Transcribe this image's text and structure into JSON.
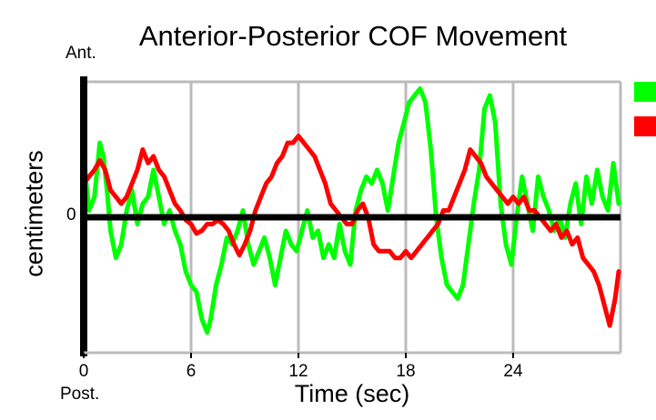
{
  "chart_data": {
    "type": "line",
    "title": "Anterior-Posterior COF Movement",
    "xlabel": "Time (sec)",
    "ylabel": "centimeters",
    "y_top_label": "Ant.",
    "y_bottom_label": "Post.",
    "y_zero_label": "0",
    "xlim": [
      0,
      30
    ],
    "ylim": [
      -1.0,
      1.0
    ],
    "xticks": [
      0,
      6,
      12,
      18,
      24
    ],
    "grid": true,
    "legend_position": "top-right",
    "series": [
      {
        "name": "",
        "color": "#00ff00",
        "x": [
          0,
          0.1,
          0.3,
          0.6,
          0.9,
          1.1,
          1.3,
          1.5,
          1.8,
          2.1,
          2.4,
          2.7,
          3.0,
          3.3,
          3.6,
          3.9,
          4.2,
          4.5,
          4.8,
          5.1,
          5.4,
          5.7,
          6.0,
          6.3,
          6.6,
          6.9,
          7.1,
          7.4,
          7.7,
          8.0,
          8.3,
          8.6,
          8.9,
          9.2,
          9.5,
          9.8,
          10.1,
          10.4,
          10.7,
          11.0,
          11.3,
          11.6,
          11.9,
          12.2,
          12.5,
          12.8,
          13.1,
          13.4,
          13.7,
          14.0,
          14.3,
          14.6,
          14.9,
          15.2,
          15.5,
          15.8,
          16.1,
          16.4,
          16.7,
          17.0,
          17.3,
          17.6,
          17.9,
          18.2,
          18.5,
          18.8,
          19.1,
          19.4,
          19.7,
          20.0,
          20.3,
          20.6,
          20.9,
          21.2,
          21.5,
          21.8,
          22.1,
          22.4,
          22.7,
          23.0,
          23.3,
          23.6,
          23.9,
          24.2,
          24.5,
          24.8,
          25.1,
          25.4,
          25.7,
          26.0,
          26.3,
          26.6,
          26.9,
          27.2,
          27.5,
          27.8,
          28.1,
          28.4,
          28.7,
          29.0,
          29.3,
          29.6,
          29.9
        ],
        "values": [
          0.63,
          0.3,
          0.05,
          0.15,
          0.55,
          0.45,
          0.2,
          -0.1,
          -0.3,
          -0.2,
          0.05,
          0.2,
          -0.05,
          0.1,
          0.15,
          0.35,
          0.15,
          -0.05,
          0.05,
          -0.1,
          -0.2,
          -0.4,
          -0.5,
          -0.55,
          -0.75,
          -0.85,
          -0.75,
          -0.5,
          -0.35,
          -0.15,
          -0.2,
          -0.1,
          0.05,
          -0.2,
          -0.35,
          -0.25,
          -0.15,
          -0.3,
          -0.5,
          -0.3,
          -0.1,
          -0.2,
          -0.25,
          -0.1,
          0.05,
          -0.15,
          -0.1,
          -0.3,
          -0.2,
          -0.3,
          -0.05,
          -0.25,
          -0.35,
          0.05,
          0.2,
          0.3,
          0.25,
          0.35,
          0.25,
          0.05,
          0.3,
          0.55,
          0.7,
          0.85,
          0.9,
          0.95,
          0.85,
          0.5,
          0.0,
          -0.3,
          -0.5,
          -0.55,
          -0.6,
          -0.5,
          -0.2,
          0.1,
          0.35,
          0.8,
          0.9,
          0.7,
          0.1,
          -0.2,
          -0.35,
          0.0,
          0.3,
          0.1,
          -0.1,
          0.3,
          0.15,
          0.05,
          -0.1,
          0.0,
          -0.15,
          0.1,
          0.25,
          -0.05,
          0.3,
          0.1,
          0.35,
          0.15,
          0.05,
          0.4,
          0.1
        ]
      },
      {
        "name": "",
        "color": "#ff0000",
        "x": [
          0,
          0.3,
          0.6,
          0.9,
          1.2,
          1.5,
          1.8,
          2.1,
          2.4,
          2.7,
          3.0,
          3.3,
          3.6,
          3.9,
          4.2,
          4.5,
          4.8,
          5.1,
          5.4,
          5.7,
          6.0,
          6.3,
          6.6,
          6.9,
          7.2,
          7.5,
          7.8,
          8.1,
          8.4,
          8.7,
          9.0,
          9.3,
          9.6,
          9.9,
          10.2,
          10.5,
          10.8,
          11.1,
          11.4,
          11.7,
          12.0,
          12.3,
          12.6,
          12.9,
          13.2,
          13.5,
          13.8,
          14.1,
          14.4,
          14.7,
          15.0,
          15.3,
          15.6,
          15.9,
          16.2,
          16.5,
          16.8,
          17.1,
          17.4,
          17.7,
          18.0,
          18.3,
          18.6,
          18.9,
          19.2,
          19.5,
          19.8,
          20.1,
          20.4,
          20.7,
          21.0,
          21.3,
          21.6,
          21.9,
          22.2,
          22.5,
          22.8,
          23.1,
          23.4,
          23.7,
          24.0,
          24.3,
          24.6,
          24.9,
          25.2,
          25.5,
          25.8,
          26.1,
          26.4,
          26.7,
          27.0,
          27.3,
          27.6,
          27.9,
          28.2,
          28.5,
          28.8,
          29.1,
          29.4,
          29.7,
          29.9
        ],
        "values": [
          0.25,
          0.3,
          0.35,
          0.42,
          0.35,
          0.2,
          0.15,
          0.1,
          0.15,
          0.25,
          0.35,
          0.5,
          0.4,
          0.45,
          0.35,
          0.3,
          0.2,
          0.1,
          0.05,
          -0.02,
          -0.05,
          -0.12,
          -0.1,
          -0.05,
          -0.05,
          -0.02,
          -0.05,
          -0.1,
          -0.2,
          -0.28,
          -0.2,
          -0.1,
          0.05,
          0.15,
          0.25,
          0.3,
          0.4,
          0.45,
          0.55,
          0.55,
          0.6,
          0.55,
          0.5,
          0.45,
          0.35,
          0.25,
          0.1,
          0.05,
          0.0,
          -0.05,
          -0.05,
          0.05,
          0.1,
          0.0,
          -0.2,
          -0.25,
          -0.25,
          -0.25,
          -0.3,
          -0.3,
          -0.25,
          -0.3,
          -0.25,
          -0.2,
          -0.15,
          -0.1,
          -0.05,
          0.05,
          0.05,
          0.15,
          0.25,
          0.35,
          0.5,
          0.45,
          0.4,
          0.3,
          0.25,
          0.2,
          0.15,
          0.1,
          0.15,
          0.1,
          0.15,
          0.05,
          0.05,
          0.0,
          -0.05,
          -0.1,
          -0.05,
          -0.15,
          -0.1,
          -0.2,
          -0.15,
          -0.3,
          -0.35,
          -0.4,
          -0.5,
          -0.65,
          -0.8,
          -0.6,
          -0.4
        ]
      }
    ]
  }
}
